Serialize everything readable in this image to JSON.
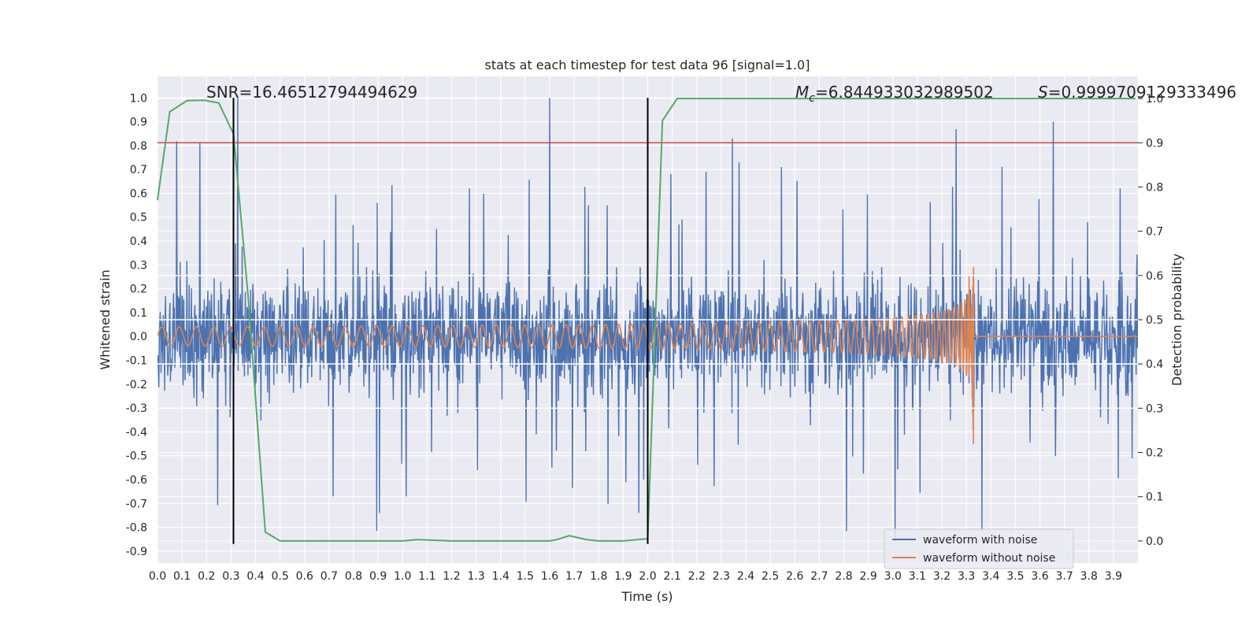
{
  "chart_data": {
    "type": "line",
    "title": "stats at each timestep for test data 96 [signal=1.0]",
    "xlabel": "Time (s)",
    "ylabel": "Whitened strain",
    "y2label": "Detection probability",
    "xlim": [
      0.0,
      4.0
    ],
    "ylim": [
      -0.95,
      1.09
    ],
    "y2lim": [
      -0.05,
      1.05
    ],
    "x_ticks": [
      "0.0",
      "0.1",
      "0.2",
      "0.3",
      "0.4",
      "0.5",
      "0.6",
      "0.7",
      "0.8",
      "0.9",
      "1.0",
      "1.1",
      "1.2",
      "1.3",
      "1.4",
      "1.5",
      "1.6",
      "1.7",
      "1.8",
      "1.9",
      "2.0",
      "2.1",
      "2.2",
      "2.3",
      "2.4",
      "2.5",
      "2.6",
      "2.7",
      "2.8",
      "2.9",
      "3.0",
      "3.1",
      "3.2",
      "3.3",
      "3.4",
      "3.5",
      "3.6",
      "3.7",
      "3.8",
      "3.9"
    ],
    "y_ticks": [
      "1.0",
      "0.9",
      "0.8",
      "0.7",
      "0.6",
      "0.5",
      "0.4",
      "0.3",
      "0.2",
      "0.1",
      "0.0",
      "-0.1",
      "-0.2",
      "-0.3",
      "-0.4",
      "-0.5",
      "-0.6",
      "-0.7",
      "-0.8",
      "-0.9"
    ],
    "y2_ticks": [
      "1.0",
      "0.9",
      "0.8",
      "0.7",
      "0.6",
      "0.5",
      "0.4",
      "0.3",
      "0.2",
      "0.1",
      "0.0"
    ],
    "annotations": {
      "snr": "SNR=16.46512794494629",
      "mc_symbol": "M",
      "mc_sub": "c",
      "mc_value": "=6.844933032989502",
      "s_symbol": "S",
      "s_value": "=0.9999709129333496"
    },
    "threshold_y2": 0.9,
    "vertical_lines_x": [
      0.31,
      2.0
    ],
    "vertical_lines_yrange": [
      -0.87,
      1.0
    ],
    "legend": {
      "position": "lower-right",
      "entries": [
        "waveform with noise",
        "waveform without noise"
      ]
    },
    "series": [
      {
        "name": "waveform with noise",
        "color": "#4c72b0",
        "axis": "left",
        "description": "whitened noisy strain, amplitude roughly within -0.87 to 1.0"
      },
      {
        "name": "waveform without noise",
        "color": "#dd8452",
        "axis": "left",
        "description": "chirp signal increasing in amplitude up to merger at about 3.33 s, then zero",
        "merger_time": 3.33
      },
      {
        "name": "detection probability",
        "color": "#55a868",
        "axis": "right",
        "x": [
          0.0,
          0.05,
          0.12,
          0.19,
          0.25,
          0.31,
          0.37,
          0.44,
          0.5,
          0.6,
          0.8,
          1.0,
          1.06,
          1.2,
          1.4,
          1.6,
          1.63,
          1.68,
          1.75,
          1.8,
          1.9,
          2.0,
          2.06,
          2.12,
          2.5,
          3.0,
          3.5,
          3.99
        ],
        "values": [
          0.77,
          0.97,
          0.995,
          0.996,
          0.99,
          0.92,
          0.55,
          0.02,
          0.0,
          0.0,
          0.0,
          0.0,
          0.003,
          0.0,
          0.0,
          0.0,
          0.003,
          0.012,
          0.003,
          0.0,
          0.0,
          0.005,
          0.95,
          1.0,
          1.0,
          1.0,
          1.0,
          1.0
        ]
      },
      {
        "name": "threshold",
        "color": "#c44e52",
        "axis": "right",
        "values": [
          0.9
        ]
      }
    ]
  }
}
